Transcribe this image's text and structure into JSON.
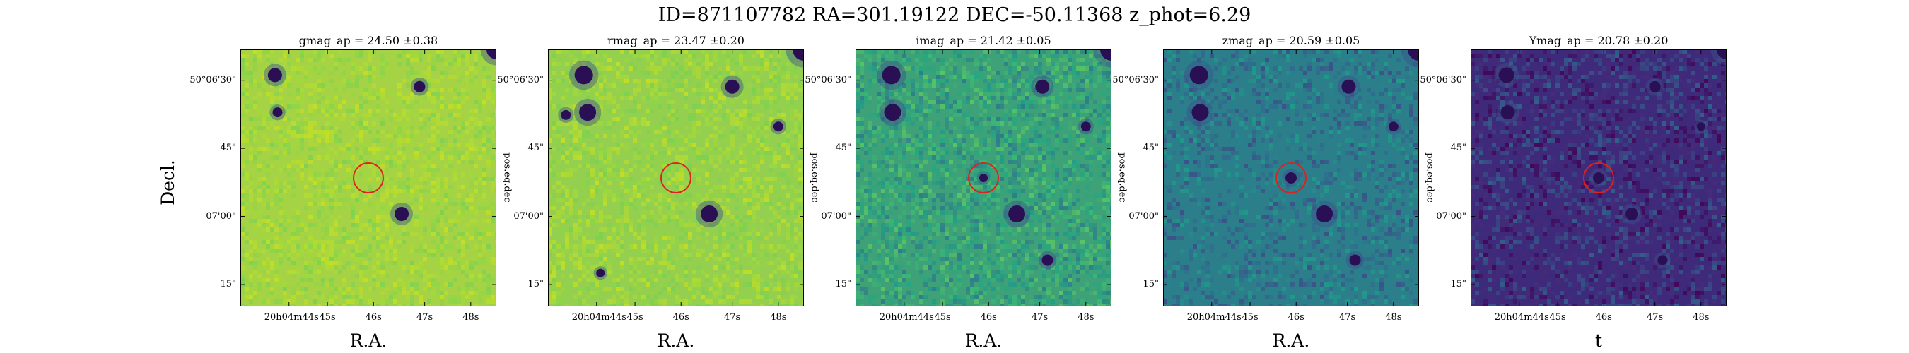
{
  "figure": {
    "title": "ID=871107782 RA=301.19122 DEC=-50.11368 z_phot=6.29",
    "ylabel": "Decl.",
    "right_axis_label": "pos.eq.dec"
  },
  "y_ticks": [
    "-50°06'30\"",
    "45\"",
    "07'00\"",
    "15\""
  ],
  "x_ticks": [
    "20h04m44s",
    "45s",
    "46s",
    "47s",
    "48s"
  ],
  "panels": [
    {
      "id": "g",
      "title": "gmag_ap = 24.50 ±0.38",
      "xlabel": "R.A.",
      "colormap": "viridis-bright",
      "base": "#a6d346",
      "sources": [
        {
          "ra": 0.135,
          "dec": 0.1,
          "r": 10
        },
        {
          "ra": 0.145,
          "dec": 0.245,
          "r": 7
        },
        {
          "ra": 0.7,
          "dec": 0.145,
          "r": 8
        },
        {
          "ra": 0.63,
          "dec": 0.64,
          "r": 10
        },
        {
          "ra": 1.0,
          "dec": 0.0,
          "r": 14
        }
      ],
      "aperture": {
        "ra": 0.5,
        "dec": 0.5
      }
    },
    {
      "id": "r",
      "title": "rmag_ap = 23.47 ±0.20",
      "xlabel": "R.A.",
      "colormap": "viridis-bright",
      "base": "#95cf4f",
      "sources": [
        {
          "ra": 0.14,
          "dec": 0.1,
          "r": 13
        },
        {
          "ra": 0.155,
          "dec": 0.245,
          "r": 12
        },
        {
          "ra": 0.07,
          "dec": 0.255,
          "r": 7
        },
        {
          "ra": 0.72,
          "dec": 0.145,
          "r": 10
        },
        {
          "ra": 0.63,
          "dec": 0.64,
          "r": 12
        },
        {
          "ra": 0.9,
          "dec": 0.3,
          "r": 7
        },
        {
          "ra": 1.0,
          "dec": 0.0,
          "r": 16
        },
        {
          "ra": 0.205,
          "dec": 0.87,
          "r": 6
        }
      ],
      "aperture": {
        "ra": 0.5,
        "dec": 0.5
      }
    },
    {
      "id": "i",
      "title": "imag_ap = 21.42 ±0.05",
      "xlabel": "R.A.",
      "colormap": "viridis-mid",
      "base": "#3ea177",
      "sources": [
        {
          "ra": 0.14,
          "dec": 0.1,
          "r": 13
        },
        {
          "ra": 0.145,
          "dec": 0.245,
          "r": 12
        },
        {
          "ra": 0.73,
          "dec": 0.145,
          "r": 10
        },
        {
          "ra": 0.63,
          "dec": 0.64,
          "r": 12
        },
        {
          "ra": 0.9,
          "dec": 0.3,
          "r": 7
        },
        {
          "ra": 1.0,
          "dec": 0.0,
          "r": 16
        },
        {
          "ra": 0.75,
          "dec": 0.82,
          "r": 8
        },
        {
          "ra": 0.5,
          "dec": 0.5,
          "r": 6
        }
      ],
      "aperture": {
        "ra": 0.5,
        "dec": 0.5
      }
    },
    {
      "id": "z",
      "title": "zmag_ap = 20.59 ±0.05",
      "xlabel": "R.A.",
      "colormap": "viridis-dark",
      "base": "#2c7f8a",
      "sources": [
        {
          "ra": 0.14,
          "dec": 0.1,
          "r": 13
        },
        {
          "ra": 0.145,
          "dec": 0.245,
          "r": 12
        },
        {
          "ra": 0.725,
          "dec": 0.145,
          "r": 10
        },
        {
          "ra": 0.63,
          "dec": 0.64,
          "r": 12
        },
        {
          "ra": 0.9,
          "dec": 0.3,
          "r": 7
        },
        {
          "ra": 1.0,
          "dec": 0.0,
          "r": 16
        },
        {
          "ra": 0.75,
          "dec": 0.82,
          "r": 8
        },
        {
          "ra": 0.5,
          "dec": 0.5,
          "r": 8
        }
      ],
      "aperture": {
        "ra": 0.5,
        "dec": 0.5
      }
    },
    {
      "id": "Y",
      "title": "Ymag_ap = 20.78 ±0.20",
      "xlabel": "t",
      "colormap": "viridis-deep",
      "base": "#3d2a7a",
      "sources": [
        {
          "ra": 0.14,
          "dec": 0.1,
          "r": 11
        },
        {
          "ra": 0.145,
          "dec": 0.245,
          "r": 10
        },
        {
          "ra": 0.72,
          "dec": 0.145,
          "r": 8
        },
        {
          "ra": 0.63,
          "dec": 0.64,
          "r": 9
        },
        {
          "ra": 0.9,
          "dec": 0.3,
          "r": 6
        },
        {
          "ra": 1.0,
          "dec": 0.0,
          "r": 14
        },
        {
          "ra": 0.75,
          "dec": 0.82,
          "r": 7
        },
        {
          "ra": 0.5,
          "dec": 0.5,
          "r": 8
        }
      ],
      "aperture": {
        "ra": 0.5,
        "dec": 0.5
      }
    }
  ],
  "colors": {
    "aperture": "#e0201c",
    "source": "#2a0f55",
    "frame": "#000000"
  }
}
